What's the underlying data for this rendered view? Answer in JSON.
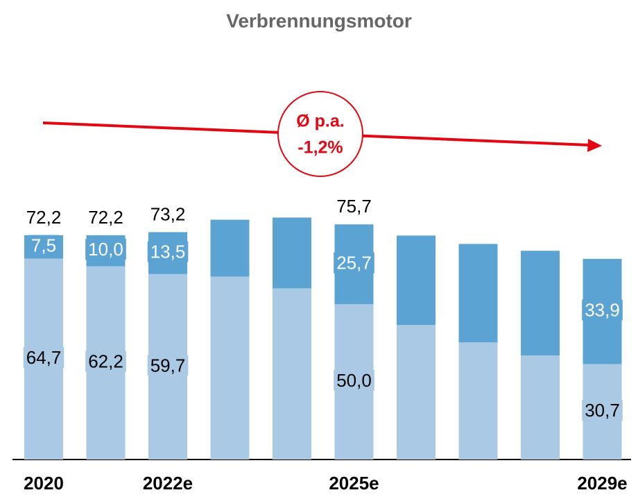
{
  "chart_data": {
    "type": "stacked_bar",
    "title": "Verbrennungsmotor",
    "annotation": [
      "Ø p.a.",
      "-1,2%"
    ],
    "categories": [
      "2020",
      null,
      "2022e",
      null,
      null,
      "2025e",
      null,
      null,
      null,
      "2029e"
    ],
    "series": [
      {
        "color": "#a9c9e4",
        "label_color": "#000000",
        "values": [
          64.7,
          62.2,
          59.7,
          58.9,
          55.1,
          50.0,
          43.3,
          37.7,
          33.5,
          30.7
        ],
        "value_labels": [
          "64,7",
          "62,2",
          "59,7",
          null,
          null,
          "50,0",
          null,
          null,
          null,
          "30,7"
        ]
      },
      {
        "color": "#5ba3d3",
        "label_color": "#ffffff",
        "values": [
          7.5,
          10.0,
          13.5,
          18.3,
          22.8,
          25.7,
          28.8,
          31.7,
          33.7,
          33.9
        ],
        "value_labels": [
          "7,5",
          "10,0",
          "13,5",
          null,
          null,
          "25,7",
          null,
          null,
          null,
          "33,9"
        ]
      }
    ],
    "totals": [
      72.2,
      72.2,
      73.2,
      null,
      null,
      75.7,
      null,
      null,
      null,
      null
    ],
    "total_labels": [
      "72,2",
      "72,2",
      "73,2",
      null,
      null,
      "75,7",
      null,
      null,
      null,
      null
    ],
    "ylim": [
      0,
      80
    ],
    "annotation_color": "#e30613"
  }
}
